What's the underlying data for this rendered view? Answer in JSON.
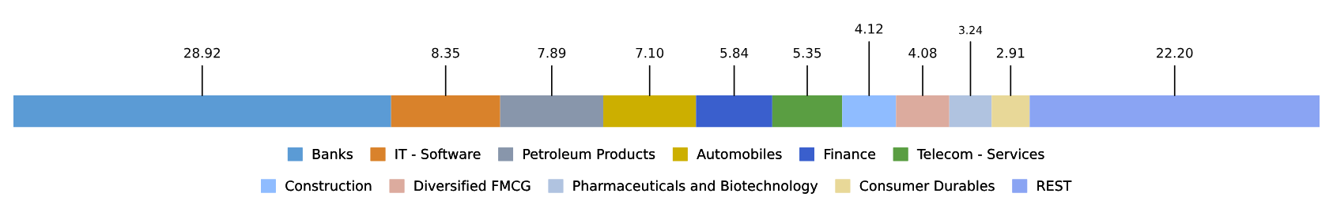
{
  "chart_data": {
    "type": "bar",
    "stacked": true,
    "orientation": "horizontal",
    "categories": [
      null
    ],
    "tick_labels": false,
    "legend": "bottom",
    "series": [
      {
        "name": "Banks",
        "color": "#5b9bd5",
        "values": [
          28.92
        ],
        "value_labels": [
          "28.92"
        ]
      },
      {
        "name": "IT - Software",
        "color": "#d9822b",
        "values": [
          8.35
        ],
        "value_labels": [
          "8.35"
        ]
      },
      {
        "name": "Petroleum Products",
        "color": "#8896ab",
        "values": [
          7.89
        ],
        "value_labels": [
          "7.89"
        ]
      },
      {
        "name": "Automobiles",
        "color": "#ccaf00",
        "values": [
          7.1
        ],
        "value_labels": [
          "7.10"
        ]
      },
      {
        "name": "Finance",
        "color": "#3a5fcd",
        "values": [
          5.84
        ],
        "value_labels": [
          "5.84"
        ]
      },
      {
        "name": "Telecom - Services",
        "color": "#5a9e42",
        "values": [
          5.35
        ],
        "value_labels": [
          "5.35"
        ]
      },
      {
        "name": "Construction",
        "color": "#8fbcff",
        "values": [
          4.12
        ],
        "value_labels": [
          "4.12"
        ]
      },
      {
        "name": "Diversified FMCG",
        "color": "#dcab9e",
        "values": [
          4.08
        ],
        "value_labels": [
          "4.08"
        ]
      },
      {
        "name": "Pharmaceuticals and Biotechnology",
        "color": "#b0c3e0",
        "values": [
          3.24
        ],
        "value_labels": [
          "3.24"
        ]
      },
      {
        "name": "Consumer Durables",
        "color": "#e8d898",
        "values": [
          2.91
        ],
        "value_labels": [
          "2.91"
        ]
      },
      {
        "name": "REST",
        "color": "#8aa4f3",
        "values": [
          22.2
        ],
        "value_labels": [
          "22.20"
        ]
      }
    ]
  }
}
